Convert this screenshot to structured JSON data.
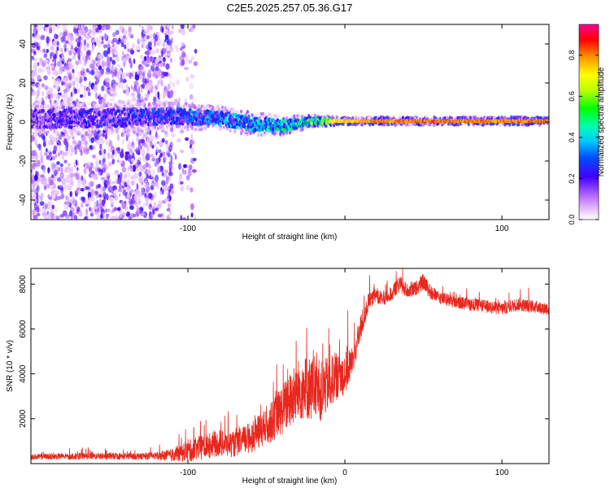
{
  "title": "C2E5.2025.257.05.36.G17",
  "colors": {
    "line": "#e8281e",
    "axis": "#000000"
  },
  "chart_data": [
    {
      "type": "heatmap",
      "xlabel": "Height of straight line (km)",
      "ylabel": "Frequency (Hz)",
      "xlim": [
        -200,
        130
      ],
      "ylim": [
        -50,
        50
      ],
      "xticks": [
        -100,
        0,
        100
      ],
      "xtick_labels": [
        "-100",
        "",
        "100"
      ],
      "yticks": [
        -40,
        -20,
        0,
        20,
        40
      ],
      "ytick_labels": [
        "-40",
        "-20",
        "0",
        "20",
        "40"
      ],
      "colorbar": {
        "label": "Normalized spectral amplitude",
        "range": [
          0.0,
          0.95
        ],
        "ticks": [
          0.0,
          0.2,
          0.4,
          0.6,
          0.8
        ],
        "tick_labels": [
          "0.0",
          "0.2",
          "0.4",
          "0.6",
          "0.8"
        ]
      },
      "ridge": [
        {
          "x": -190,
          "f": 1.5,
          "spread": 4,
          "amp": 0.25
        },
        {
          "x": -150,
          "f": 2,
          "spread": 4,
          "amp": 0.3
        },
        {
          "x": -110,
          "f": 3,
          "spread": 3.5,
          "amp": 0.35
        },
        {
          "x": -80,
          "f": 2,
          "spread": 3,
          "amp": 0.45
        },
        {
          "x": -60,
          "f": -1,
          "spread": 3,
          "amp": 0.5
        },
        {
          "x": -40,
          "f": -2,
          "spread": 2.5,
          "amp": 0.55
        },
        {
          "x": -20,
          "f": 0.5,
          "spread": 1.5,
          "amp": 0.7
        },
        {
          "x": 0,
          "f": 0.5,
          "spread": 1,
          "amp": 0.85
        },
        {
          "x": 20,
          "f": 0.5,
          "spread": 1,
          "amp": 0.9
        },
        {
          "x": 60,
          "f": 0.5,
          "spread": 1,
          "amp": 0.92
        },
        {
          "x": 100,
          "f": 0.5,
          "spread": 1,
          "amp": 0.9
        },
        {
          "x": 130,
          "f": 0.5,
          "spread": 1,
          "amp": 0.92
        }
      ]
    },
    {
      "type": "line",
      "xlabel": "Height of straight line (km)",
      "ylabel": "SNR (10 * v/v)",
      "xlim": [
        -200,
        130
      ],
      "ylim": [
        0,
        8700
      ],
      "xticks": [
        -100,
        0,
        100
      ],
      "xtick_labels": [
        "-100",
        "0",
        "100"
      ],
      "yticks": [
        2000,
        4000,
        6000,
        8000
      ],
      "ytick_labels": [
        "2000",
        "4000",
        "6000",
        "8000"
      ],
      "series": [
        {
          "name": "SNR",
          "x": [
            -200,
            -180,
            -160,
            -140,
            -120,
            -110,
            -100,
            -90,
            -80,
            -70,
            -60,
            -50,
            -40,
            -30,
            -25,
            -20,
            -15,
            -10,
            -5,
            0,
            5,
            10,
            15,
            20,
            25,
            30,
            35,
            40,
            45,
            50,
            55,
            60,
            70,
            80,
            90,
            100,
            110,
            120,
            130
          ],
          "values": [
            300,
            320,
            330,
            330,
            340,
            380,
            550,
            750,
            900,
            850,
            1200,
            1600,
            2400,
            3200,
            3400,
            3300,
            3200,
            3600,
            3900,
            4000,
            4600,
            6000,
            7200,
            7500,
            7300,
            7600,
            8000,
            7700,
            7800,
            8100,
            7600,
            7400,
            7200,
            7100,
            7000,
            6900,
            7100,
            7000,
            6900
          ],
          "noise": [
            150,
            170,
            180,
            180,
            200,
            350,
            600,
            700,
            700,
            700,
            900,
            1000,
            1400,
            1700,
            1800,
            1800,
            1700,
            1500,
            1300,
            1200,
            900,
            700,
            500,
            400,
            400,
            400,
            450,
            400,
            400,
            450,
            400,
            350,
            350,
            350,
            350,
            350,
            350,
            350,
            350
          ]
        }
      ]
    }
  ]
}
